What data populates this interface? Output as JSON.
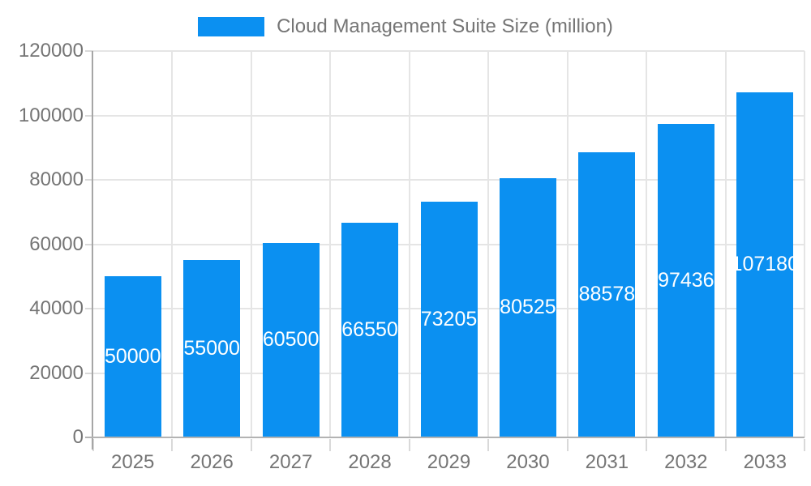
{
  "chart_data": {
    "type": "bar",
    "title": "Cloud Management Suite Size (million)",
    "categories": [
      "2025",
      "2026",
      "2027",
      "2028",
      "2029",
      "2030",
      "2031",
      "2032",
      "2033"
    ],
    "values": [
      50000,
      55000,
      60500,
      66550,
      73205,
      80525,
      88578,
      97436,
      107180
    ],
    "bar_value_labels": [
      "50000",
      "55000",
      "60500",
      "66550",
      "73205",
      "80525",
      "88578",
      "97436",
      "107180"
    ],
    "xlabel": "",
    "ylabel": "",
    "ylim": [
      0,
      120000
    ],
    "yticks": [
      0,
      20000,
      40000,
      60000,
      80000,
      100000,
      120000
    ],
    "ytick_labels": [
      "0",
      "20000",
      "40000",
      "60000",
      "80000",
      "100000",
      "120000"
    ],
    "grid": true,
    "legend_position": "top",
    "value_label_position": "inside-center",
    "colors": {
      "bar": "#0b90f1",
      "bar_label": "#ffffff",
      "axis_text": "#757575",
      "axis_line_y": "#a6a6a6",
      "axis_line_x": "#b3b3b3",
      "gridline": "#e5e5e5",
      "tick": "#d9d9d9",
      "background": "#ffffff"
    }
  },
  "legend": {
    "label": "Cloud Management Suite Size (million)"
  }
}
